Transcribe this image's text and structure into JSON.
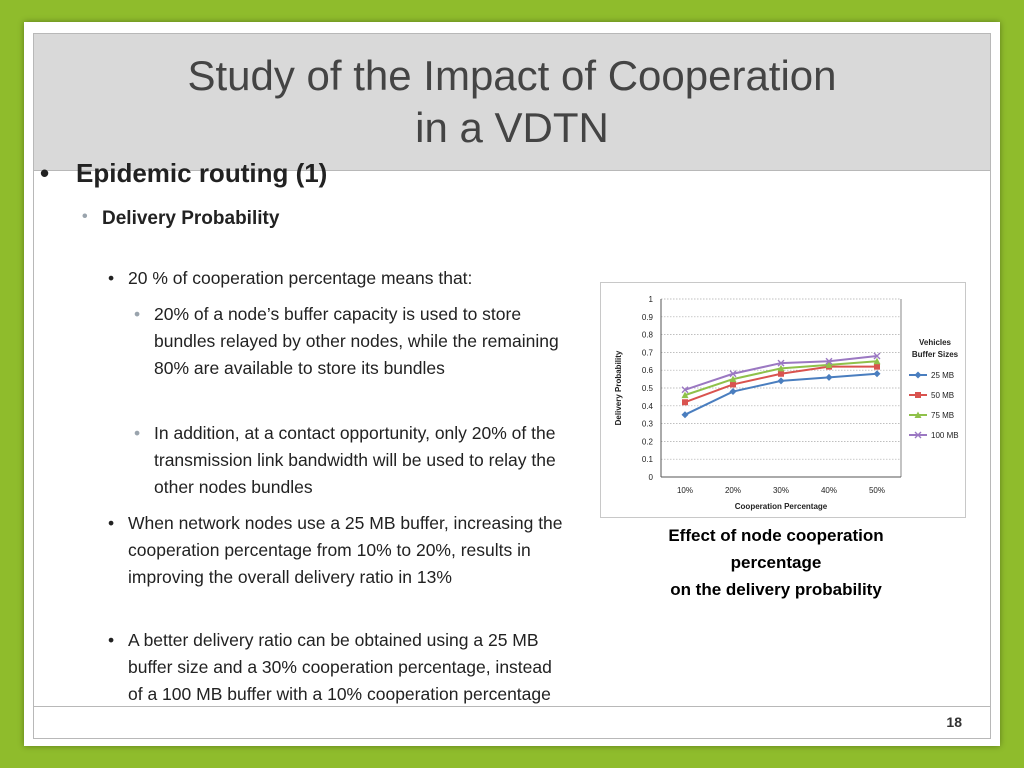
{
  "slide": {
    "title_line1": "Study of the Impact of Cooperation",
    "title_line2": "in a VDTN",
    "page_number": "18"
  },
  "content": {
    "bullet1": "Epidemic routing (1)",
    "bullet2": "Delivery Probability",
    "bullet3a": "20 % of cooperation percentage means that:",
    "bullet4a": "20% of a node’s buffer capacity is used to store bundles relayed by other nodes, while the remaining 80% are available to store its bundles",
    "bullet4b": "In addition, at a contact opportunity, only 20% of the transmission link bandwidth will be used to relay the other nodes bundles",
    "bullet3b": "When network nodes use a 25 MB buffer, increasing the cooperation percentage from 10% to 20%, results in improving the overall delivery ratio in 13%",
    "bullet3c": "A better delivery ratio can be obtained using a 25 MB buffer size and a 30% cooperation percentage, instead of a 100 MB buffer with a 10% cooperation percentage"
  },
  "caption": {
    "line1": "Effect of node cooperation",
    "line2": "percentage",
    "line3": "on the delivery probability"
  },
  "chart_data": {
    "type": "line",
    "x": [
      "10%",
      "20%",
      "30%",
      "40%",
      "50%"
    ],
    "xlabel": "Cooperation Percentage",
    "ylabel": "Delivery Probability",
    "ylim": [
      0,
      1
    ],
    "yticks": [
      "0",
      "0.1",
      "0.2",
      "0.3",
      "0.4",
      "0.5",
      "0.6",
      "0.7",
      "0.8",
      "0.9",
      "1"
    ],
    "grid": true,
    "legend_title": "Vehicles Buffer Sizes",
    "legend_position": "right",
    "series": [
      {
        "name": "25 MB",
        "values": [
          0.35,
          0.48,
          0.54,
          0.56,
          0.58
        ],
        "color": "#4a7ebf",
        "marker": "diamond"
      },
      {
        "name": "50 MB",
        "values": [
          0.42,
          0.52,
          0.58,
          0.62,
          0.62
        ],
        "color": "#d9534f",
        "marker": "square"
      },
      {
        "name": "75 MB",
        "values": [
          0.46,
          0.55,
          0.61,
          0.63,
          0.65
        ],
        "color": "#8fc14a",
        "marker": "triangle"
      },
      {
        "name": "100 MB",
        "values": [
          0.49,
          0.58,
          0.64,
          0.65,
          0.68
        ],
        "color": "#9b78c2",
        "marker": "x"
      }
    ]
  }
}
